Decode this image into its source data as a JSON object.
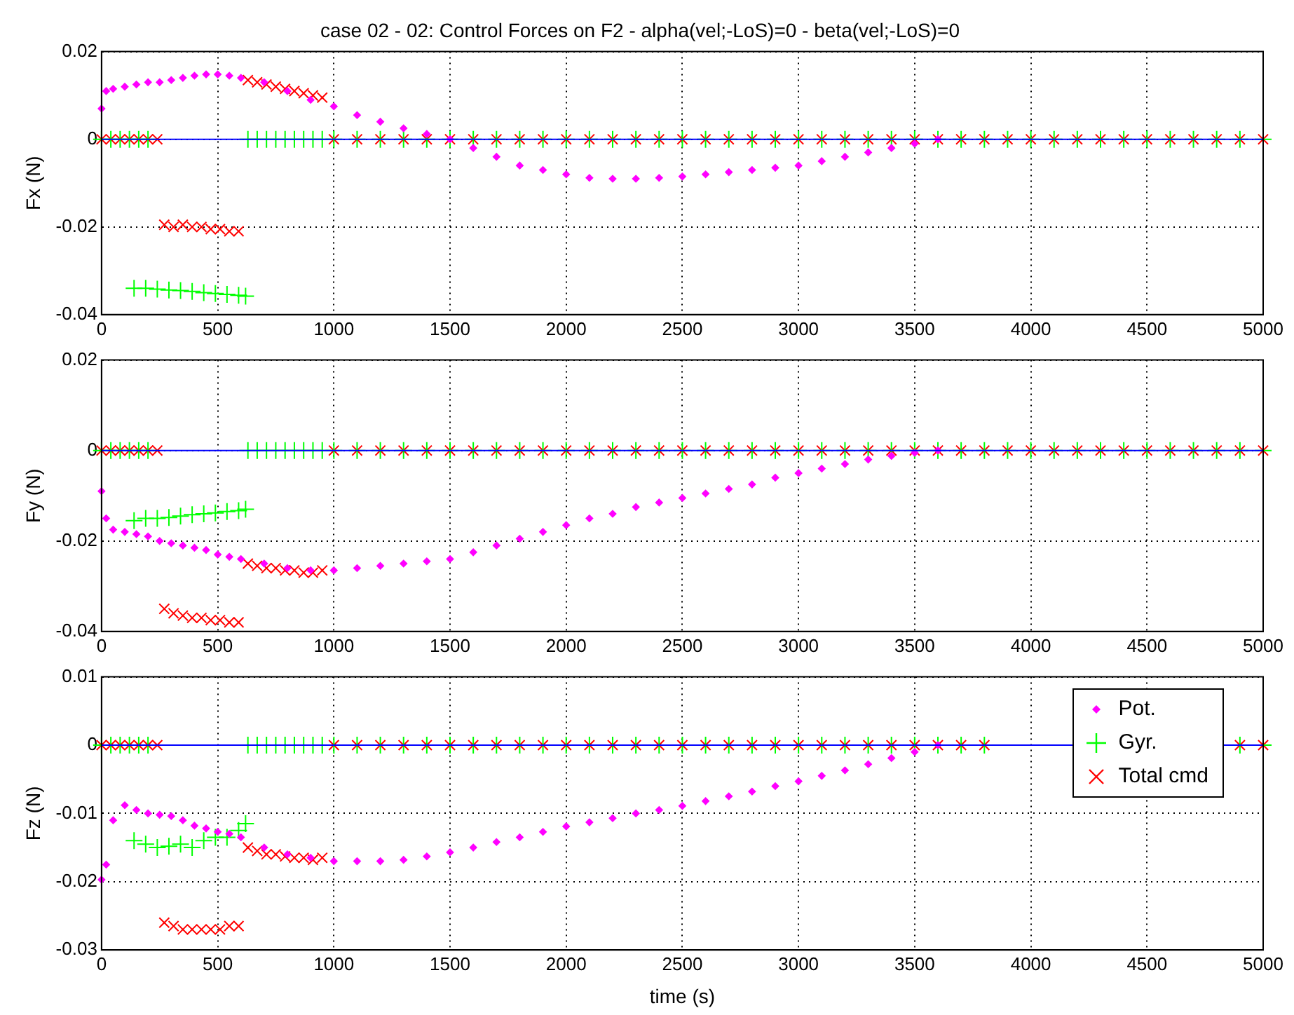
{
  "chart_data": [
    {
      "type": "scatter",
      "title": "case 02 - 02: Control Forces on F2 - alpha(vel;-LoS)=0 - beta(vel;-LoS)=0",
      "ylabel": "Fx (N)",
      "xlim": [
        0,
        5000
      ],
      "xticks": [
        0,
        500,
        1000,
        1500,
        2000,
        2500,
        3000,
        3500,
        4000,
        4500,
        5000
      ],
      "ylim": [
        -0.04,
        0.02
      ],
      "yticks": [
        -0.04,
        -0.02,
        0,
        0.02
      ],
      "grid": true,
      "series": [
        {
          "type": "line",
          "color": "#0000ff",
          "marker": "none",
          "x": [
            0,
            5000
          ],
          "values": [
            0,
            0
          ]
        },
        {
          "color": "#ff00ff",
          "marker": "diamond",
          "x": [
            0,
            20,
            50,
            100,
            150,
            200,
            250,
            300,
            350,
            400,
            450,
            500,
            550,
            600,
            700,
            800,
            900,
            1000,
            1100,
            1200,
            1300,
            1400,
            1500,
            1600,
            1700,
            1800,
            1900,
            2000,
            2100,
            2200,
            2300,
            2400,
            2500,
            2600,
            2700,
            2800,
            2900,
            3000,
            3100,
            3200,
            3300,
            3400,
            3500,
            3600
          ],
          "values": [
            0.007,
            0.011,
            0.0115,
            0.012,
            0.0125,
            0.013,
            0.013,
            0.0135,
            0.014,
            0.0145,
            0.0148,
            0.0148,
            0.0145,
            0.014,
            0.013,
            0.011,
            0.009,
            0.0075,
            0.0055,
            0.004,
            0.0025,
            0.0012,
            0,
            -0.002,
            -0.004,
            -0.006,
            -0.007,
            -0.008,
            -0.0088,
            -0.009,
            -0.009,
            -0.0088,
            -0.0085,
            -0.008,
            -0.0075,
            -0.007,
            -0.0065,
            -0.006,
            -0.005,
            -0.004,
            -0.003,
            -0.002,
            -0.001,
            0
          ]
        },
        {
          "color": "#00ff00",
          "marker": "cross",
          "x": [
            0,
            40,
            80,
            120,
            160,
            200,
            140,
            190,
            240,
            290,
            340,
            390,
            440,
            490,
            540,
            590,
            620,
            630,
            670,
            710,
            750,
            790,
            830,
            870,
            910,
            950,
            1000,
            1100,
            1200,
            1300,
            1400,
            1500,
            1600,
            1700,
            1800,
            1900,
            2000,
            2100,
            2200,
            2300,
            2400,
            2500,
            2600,
            2700,
            2800,
            2900,
            3000,
            3100,
            3200,
            3300,
            3400,
            3500,
            3600,
            3700,
            3800,
            3900,
            4000,
            4100,
            4200,
            4300,
            4400,
            4500,
            4600,
            4700,
            4800,
            4900,
            5000
          ],
          "values": [
            0,
            0,
            0,
            0,
            0,
            0,
            -0.034,
            -0.034,
            -0.0342,
            -0.0344,
            -0.0345,
            -0.0347,
            -0.035,
            -0.0352,
            -0.0354,
            -0.0356,
            -0.0358,
            0,
            0,
            0,
            0,
            0,
            0,
            0,
            0,
            0,
            0,
            0,
            0,
            0,
            0,
            0,
            0,
            0,
            0,
            0,
            0,
            0,
            0,
            0,
            0,
            0,
            0,
            0,
            0,
            0,
            0,
            0,
            0,
            0,
            0,
            0,
            0,
            0,
            0,
            0,
            0,
            0,
            0,
            0,
            0,
            0,
            0,
            0,
            0,
            0,
            0
          ]
        },
        {
          "color": "#ff0000",
          "marker": "x",
          "x": [
            0,
            40,
            80,
            120,
            160,
            200,
            240,
            270,
            310,
            350,
            390,
            430,
            470,
            510,
            550,
            590,
            630,
            670,
            710,
            750,
            790,
            830,
            870,
            910,
            950,
            1000,
            1100,
            1200,
            1300,
            1400,
            1500,
            1600,
            1700,
            1800,
            1900,
            2000,
            2100,
            2200,
            2300,
            2400,
            2500,
            2600,
            2700,
            2800,
            2900,
            3000,
            3100,
            3200,
            3300,
            3400,
            3500,
            3600,
            3700,
            3800,
            3900,
            4000,
            4100,
            4200,
            4300,
            4400,
            4500,
            4600,
            4700,
            4800,
            4900,
            5000
          ],
          "values": [
            0,
            0,
            0,
            0,
            0,
            0,
            0,
            -0.0195,
            -0.02,
            -0.0195,
            -0.02,
            -0.02,
            -0.0205,
            -0.0205,
            -0.021,
            -0.021,
            0.0135,
            0.013,
            0.0125,
            0.012,
            0.0115,
            0.011,
            0.0105,
            0.01,
            0.0095,
            0,
            0,
            0,
            0,
            0,
            0,
            0,
            0,
            0,
            0,
            0,
            0,
            0,
            0,
            0,
            0,
            0,
            0,
            0,
            0,
            0,
            0,
            0,
            0,
            0,
            0,
            0,
            0,
            0,
            0,
            0,
            0,
            0,
            0,
            0,
            0,
            0,
            0,
            0,
            0,
            0
          ]
        }
      ]
    },
    {
      "type": "scatter",
      "ylabel": "Fy (N)",
      "xlim": [
        0,
        5000
      ],
      "xticks": [
        0,
        500,
        1000,
        1500,
        2000,
        2500,
        3000,
        3500,
        4000,
        4500,
        5000
      ],
      "ylim": [
        -0.04,
        0.02
      ],
      "yticks": [
        -0.04,
        -0.02,
        0,
        0.02
      ],
      "grid": true,
      "series": [
        {
          "type": "line",
          "color": "#0000ff",
          "marker": "none",
          "x": [
            0,
            5000
          ],
          "values": [
            0,
            0
          ]
        },
        {
          "color": "#ff00ff",
          "marker": "diamond",
          "x": [
            0,
            20,
            50,
            100,
            150,
            200,
            250,
            300,
            350,
            400,
            450,
            500,
            550,
            600,
            700,
            800,
            900,
            1000,
            1100,
            1200,
            1300,
            1400,
            1500,
            1600,
            1700,
            1800,
            1900,
            2000,
            2100,
            2200,
            2300,
            2400,
            2500,
            2600,
            2700,
            2800,
            2900,
            3000,
            3100,
            3200,
            3300,
            3400,
            3500,
            3600
          ],
          "values": [
            -0.009,
            -0.015,
            -0.0175,
            -0.018,
            -0.0185,
            -0.019,
            -0.02,
            -0.0205,
            -0.021,
            -0.0215,
            -0.022,
            -0.023,
            -0.0235,
            -0.024,
            -0.025,
            -0.026,
            -0.0265,
            -0.0265,
            -0.026,
            -0.0255,
            -0.025,
            -0.0245,
            -0.024,
            -0.0225,
            -0.021,
            -0.0195,
            -0.018,
            -0.0165,
            -0.015,
            -0.014,
            -0.0125,
            -0.0115,
            -0.0105,
            -0.0095,
            -0.0085,
            -0.0075,
            -0.006,
            -0.005,
            -0.004,
            -0.003,
            -0.002,
            -0.0012,
            -0.0005,
            0
          ]
        },
        {
          "color": "#00ff00",
          "marker": "cross",
          "x": [
            0,
            40,
            80,
            120,
            160,
            200,
            140,
            190,
            240,
            290,
            340,
            390,
            440,
            490,
            540,
            590,
            620,
            630,
            670,
            710,
            750,
            790,
            830,
            870,
            910,
            950,
            1000,
            1100,
            1200,
            1300,
            1400,
            1500,
            1600,
            1700,
            1800,
            1900,
            2000,
            2100,
            2200,
            2300,
            2400,
            2500,
            2600,
            2700,
            2800,
            2900,
            3000,
            3100,
            3200,
            3300,
            3400,
            3500,
            3600,
            3700,
            3800,
            3900,
            4000,
            4100,
            4200,
            4300,
            4400,
            4500,
            4600,
            4700,
            4800,
            4900,
            5000
          ],
          "values": [
            0,
            0,
            0,
            0,
            0,
            0,
            -0.0155,
            -0.015,
            -0.015,
            -0.0148,
            -0.0145,
            -0.0142,
            -0.014,
            -0.0138,
            -0.0135,
            -0.0133,
            -0.013,
            0,
            0,
            0,
            0,
            0,
            0,
            0,
            0,
            0,
            0,
            0,
            0,
            0,
            0,
            0,
            0,
            0,
            0,
            0,
            0,
            0,
            0,
            0,
            0,
            0,
            0,
            0,
            0,
            0,
            0,
            0,
            0,
            0,
            0,
            0,
            0,
            0,
            0,
            0,
            0,
            0,
            0,
            0,
            0,
            0,
            0,
            0,
            0,
            0,
            0
          ]
        },
        {
          "color": "#ff0000",
          "marker": "x",
          "x": [
            0,
            40,
            80,
            120,
            160,
            200,
            240,
            270,
            310,
            350,
            390,
            430,
            470,
            510,
            550,
            590,
            630,
            670,
            710,
            750,
            790,
            830,
            870,
            910,
            950,
            1000,
            1100,
            1200,
            1300,
            1400,
            1500,
            1600,
            1700,
            1800,
            1900,
            2000,
            2100,
            2200,
            2300,
            2400,
            2500,
            2600,
            2700,
            2800,
            2900,
            3000,
            3100,
            3200,
            3300,
            3400,
            3500,
            3600,
            3700,
            3800,
            3900,
            4000,
            4100,
            4200,
            4300,
            4400,
            4500,
            4600,
            4700,
            4800,
            4900,
            5000
          ],
          "values": [
            0,
            0,
            0,
            0,
            0,
            0,
            0,
            -0.035,
            -0.036,
            -0.0365,
            -0.037,
            -0.037,
            -0.0375,
            -0.0375,
            -0.038,
            -0.038,
            -0.025,
            -0.0255,
            -0.026,
            -0.026,
            -0.0265,
            -0.0265,
            -0.027,
            -0.027,
            -0.0265,
            0,
            0,
            0,
            0,
            0,
            0,
            0,
            0,
            0,
            0,
            0,
            0,
            0,
            0,
            0,
            0,
            0,
            0,
            0,
            0,
            0,
            0,
            0,
            0,
            0,
            0,
            0,
            0,
            0,
            0,
            0,
            0,
            0,
            0,
            0,
            0,
            0,
            0,
            0,
            0,
            0
          ]
        }
      ]
    },
    {
      "type": "scatter",
      "xlabel": "time (s)",
      "ylabel": "Fz (N)",
      "xlim": [
        0,
        5000
      ],
      "xticks": [
        0,
        500,
        1000,
        1500,
        2000,
        2500,
        3000,
        3500,
        4000,
        4500,
        5000
      ],
      "ylim": [
        -0.03,
        0.01
      ],
      "yticks": [
        -0.03,
        -0.02,
        -0.01,
        0,
        0.01
      ],
      "grid": true,
      "legend": "top right",
      "series": [
        {
          "type": "line",
          "color": "#0000ff",
          "marker": "none",
          "x": [
            0,
            5000
          ],
          "values": [
            0,
            0
          ]
        },
        {
          "name": "Pot.",
          "color": "#ff00ff",
          "marker": "diamond",
          "x": [
            0,
            20,
            50,
            100,
            150,
            200,
            250,
            300,
            350,
            400,
            450,
            500,
            550,
            600,
            700,
            800,
            900,
            1000,
            1100,
            1200,
            1300,
            1400,
            1500,
            1600,
            1700,
            1800,
            1900,
            2000,
            2100,
            2200,
            2300,
            2400,
            2500,
            2600,
            2700,
            2800,
            2900,
            3000,
            3100,
            3200,
            3300,
            3400,
            3500,
            3600
          ],
          "values": [
            -0.0197,
            -0.0175,
            -0.011,
            -0.0088,
            -0.0095,
            -0.01,
            -0.0102,
            -0.0104,
            -0.011,
            -0.0118,
            -0.0122,
            -0.0127,
            -0.013,
            -0.0135,
            -0.015,
            -0.016,
            -0.0165,
            -0.017,
            -0.017,
            -0.017,
            -0.0168,
            -0.0163,
            -0.0157,
            -0.015,
            -0.0142,
            -0.0135,
            -0.0127,
            -0.0119,
            -0.0113,
            -0.0107,
            -0.01,
            -0.0095,
            -0.0089,
            -0.0082,
            -0.0075,
            -0.0068,
            -0.006,
            -0.0053,
            -0.0045,
            -0.0037,
            -0.0028,
            -0.0019,
            -0.001,
            0
          ]
        },
        {
          "name": "Gyr.",
          "color": "#00ff00",
          "marker": "cross",
          "x": [
            0,
            40,
            80,
            120,
            160,
            200,
            140,
            190,
            240,
            290,
            340,
            390,
            440,
            490,
            540,
            590,
            620,
            630,
            670,
            710,
            750,
            790,
            830,
            870,
            910,
            950,
            1000,
            1100,
            1200,
            1300,
            1400,
            1500,
            1600,
            1700,
            1800,
            1900,
            2000,
            2100,
            2200,
            2300,
            2400,
            2500,
            2600,
            2700,
            2800,
            2900,
            3000,
            3100,
            3200,
            3300,
            3400,
            3500,
            3600,
            3700,
            3800,
            3900,
            4000,
            4100,
            4200,
            4300,
            4400,
            4500,
            4600,
            4700,
            4800,
            4900,
            5000
          ],
          "values": [
            0,
            0,
            0,
            0,
            0,
            0,
            -0.014,
            -0.0145,
            -0.015,
            -0.0148,
            -0.0145,
            -0.015,
            -0.014,
            -0.0135,
            -0.0135,
            -0.0125,
            -0.0115,
            0,
            0,
            0,
            0,
            0,
            0,
            0,
            0,
            0,
            0,
            0,
            0,
            0,
            0,
            0,
            0,
            0,
            0,
            0,
            0,
            0,
            0,
            0,
            0,
            0,
            0,
            0,
            0,
            0,
            0,
            0,
            0,
            0,
            0,
            0,
            0,
            0,
            0,
            null,
            null,
            null,
            null,
            null,
            null,
            null,
            null,
            null,
            null,
            0,
            0
          ]
        },
        {
          "name": "Total cmd",
          "color": "#ff0000",
          "marker": "x",
          "x": [
            0,
            40,
            80,
            120,
            160,
            200,
            240,
            270,
            310,
            350,
            390,
            430,
            470,
            510,
            550,
            590,
            630,
            670,
            710,
            750,
            790,
            830,
            870,
            910,
            950,
            1000,
            1100,
            1200,
            1300,
            1400,
            1500,
            1600,
            1700,
            1800,
            1900,
            2000,
            2100,
            2200,
            2300,
            2400,
            2500,
            2600,
            2700,
            2800,
            2900,
            3000,
            3100,
            3200,
            3300,
            3400,
            3500,
            3600,
            3700,
            3800,
            3900,
            4000,
            4100,
            4200,
            4300,
            4400,
            4500,
            4600,
            4700,
            4800,
            4900,
            5000
          ],
          "values": [
            0,
            0,
            0,
            0,
            0,
            0,
            0,
            -0.026,
            -0.0265,
            -0.027,
            -0.027,
            -0.027,
            -0.027,
            -0.027,
            -0.0265,
            -0.0265,
            -0.015,
            -0.0155,
            -0.016,
            -0.016,
            -0.0163,
            -0.0165,
            -0.0165,
            -0.0168,
            -0.0165,
            0,
            0,
            0,
            0,
            0,
            0,
            0,
            0,
            0,
            0,
            0,
            0,
            0,
            0,
            0,
            0,
            0,
            0,
            0,
            0,
            0,
            0,
            0,
            0,
            0,
            0,
            0,
            0,
            0,
            null,
            null,
            null,
            null,
            null,
            null,
            null,
            null,
            null,
            null,
            0,
            0
          ]
        }
      ]
    }
  ]
}
